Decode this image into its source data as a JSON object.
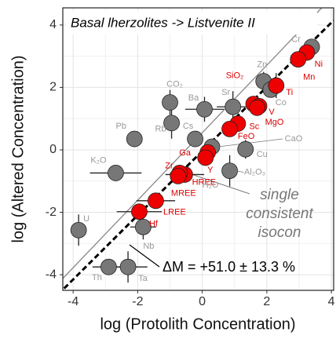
{
  "chart_data": {
    "type": "scatter",
    "title": "Basal lherzolites -> Listvenite II",
    "x_label": "log (Protolith Concentration)",
    "y_label": "log (Altered Concentration)",
    "xlim": [
      -4.32,
      4.07
    ],
    "ylim": [
      -4.5,
      4.55
    ],
    "xticks": [
      -4,
      -2,
      0,
      2,
      4
    ],
    "yticks": [
      -4,
      -2,
      0,
      2,
      4
    ],
    "grid": true,
    "series": [
      {
        "color": "#777777",
        "label_color": "#999999",
        "labels": [
          "Cr",
          "Zn",
          "Co",
          "CO₂",
          "Ba",
          "Sr",
          "Rb",
          "Cs",
          "Pb",
          "CaO",
          "Cu",
          "Al₂O₃",
          "K₂O",
          "U",
          "Nb",
          "Th",
          "Ta"
        ],
        "x": [
          3.39,
          1.9,
          2.12,
          -1.0,
          0.07,
          0.95,
          -0.95,
          -0.22,
          -2.1,
          0.3,
          1.34,
          0.85,
          -2.68,
          -3.83,
          -1.83,
          -2.9,
          -2.3
        ],
        "y": [
          3.3,
          2.2,
          1.93,
          1.52,
          1.3,
          1.38,
          0.86,
          0.35,
          0.35,
          0.1,
          0.02,
          -0.67,
          -0.74,
          -2.57,
          -2.47,
          -3.75,
          -3.75
        ],
        "xerr": [
          null,
          null,
          null,
          null,
          0.6,
          0.5,
          null,
          null,
          null,
          null,
          null,
          null,
          0.8,
          null,
          0.4,
          0.5,
          0.6
        ],
        "yerr": [
          null,
          0.3,
          null,
          0.4,
          0.4,
          0.5,
          0.5,
          null,
          null,
          null,
          0.3,
          0.5,
          null,
          0.5,
          0.4,
          null,
          0.5
        ]
      },
      {
        "color": "#ee0000",
        "label_color": "#dd0000",
        "labels": [
          "Ni",
          "Mn",
          "Ti",
          "SiO₂",
          "V",
          "MgO",
          "Sc",
          "FeO",
          "Ga",
          "Y",
          "Zr",
          "HREE",
          "MREE",
          "LREE",
          "Hf"
        ],
        "x": [
          3.24,
          2.97,
          2.29,
          1.59,
          1.76,
          1.7,
          1.1,
          0.85,
          0.17,
          0.1,
          -0.54,
          -0.7,
          -0.75,
          -1.44,
          -1.95
        ],
        "y": [
          3.12,
          2.9,
          2.06,
          1.47,
          1.4,
          1.35,
          0.84,
          0.67,
          -0.08,
          -0.25,
          -0.79,
          -0.74,
          -0.84,
          -1.63,
          -1.98
        ],
        "xerr": [
          null,
          null,
          null,
          null,
          null,
          null,
          null,
          null,
          null,
          null,
          0.6,
          0.3,
          null,
          0.6,
          0.7
        ],
        "yerr": [
          null,
          null,
          0.4,
          null,
          null,
          null,
          null,
          null,
          null,
          null,
          null,
          null,
          null,
          null,
          null
        ]
      }
    ],
    "annotations": {
      "h2o": "H₂O",
      "isocon_text": [
        "single",
        "consistent",
        "isocon"
      ],
      "delta_m": "ΔM = +51.0 ± 13.3 %"
    },
    "reference_lines": [
      {
        "color": "#888888",
        "dashed": false,
        "x": [
          -4.32,
          3.7
        ],
        "y": [
          -4.12,
          4.55
        ]
      },
      {
        "color": "#000000",
        "dashed": true,
        "x": [
          -4.28,
          4.07
        ],
        "y": [
          -4.44,
          4.15
        ]
      }
    ]
  }
}
